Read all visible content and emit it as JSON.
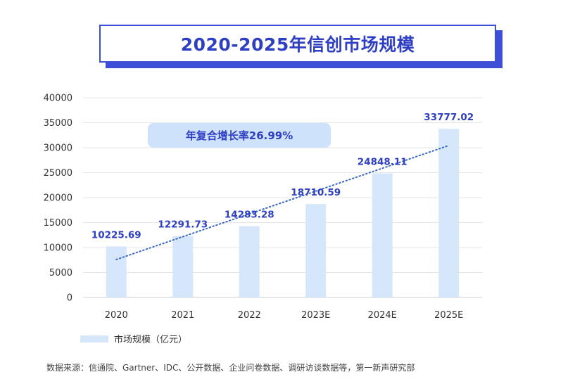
{
  "chart_data": {
    "type": "bar",
    "title": "2020-2025年信创市场规模",
    "categories": [
      "2020",
      "2021",
      "2022",
      "2023E",
      "2024E",
      "2025E"
    ],
    "series": [
      {
        "name": "市场规模（亿元）",
        "values": [
          10225.69,
          12291.73,
          14283.28,
          18710.59,
          24848.11,
          33777.02
        ]
      }
    ],
    "data_labels": [
      "10225.69",
      "12291.73",
      "14283.28",
      "18710.59",
      "24848.11",
      "33777.02"
    ],
    "yticks": [
      "0",
      "5000",
      "10000",
      "15000",
      "20000",
      "25000",
      "30000",
      "35000",
      "40000"
    ],
    "ylim": [
      0,
      40000
    ],
    "grid": true,
    "legend_position": "bottom-left",
    "trendline": {
      "type": "linear",
      "style": "dotted"
    },
    "annotation": "年复合增长率26.99%",
    "colors": {
      "bar": "#d6e7fb",
      "label": "#2f3fc4",
      "title": "#2f3fc4",
      "trend": "#3a66c4"
    }
  },
  "source_note": "数据来源：信通院、Gartner、IDC、公开数据、企业问卷数据、调研访谈数据等，第一新声研究部"
}
